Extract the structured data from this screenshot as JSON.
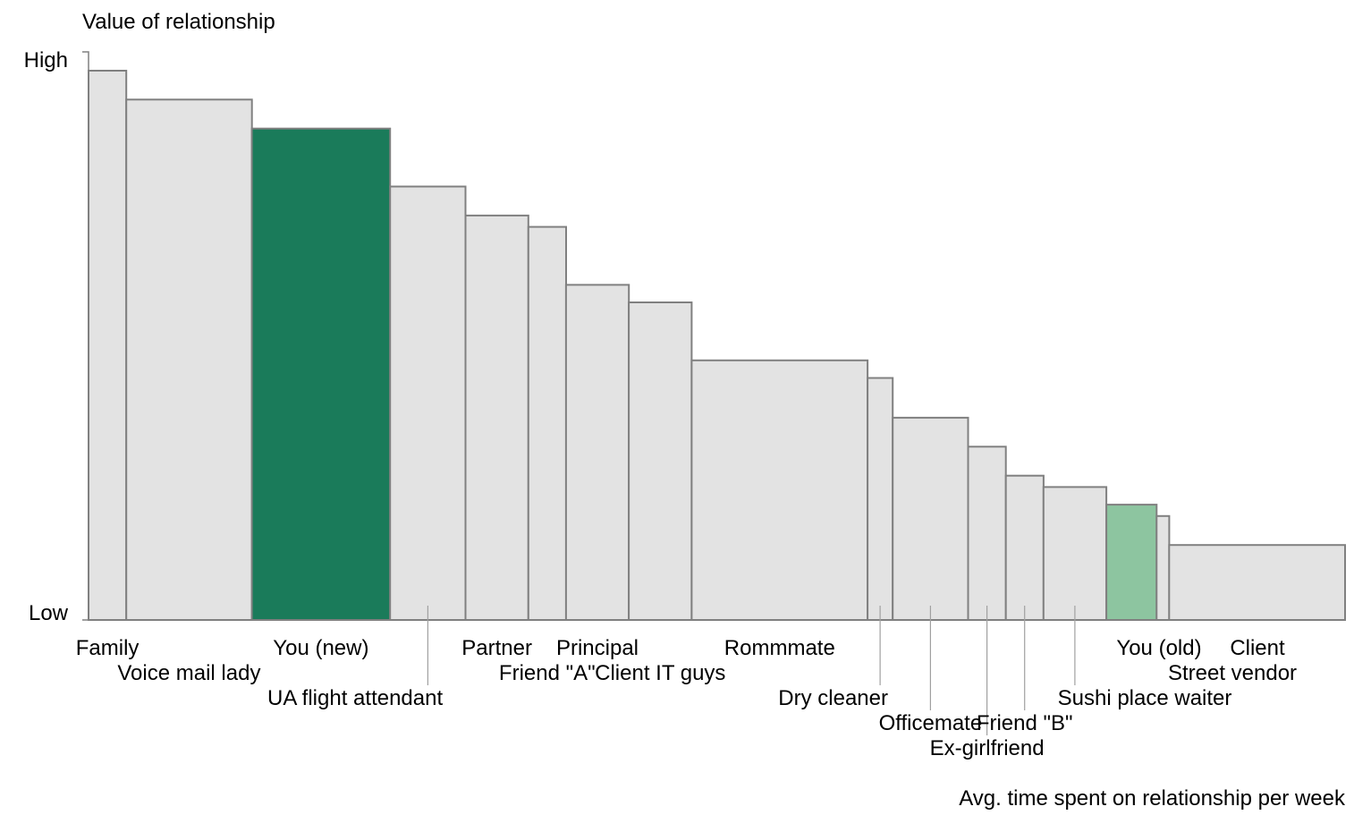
{
  "chart_data": {
    "type": "bar",
    "variant": "variable-width (marimekko-style) bars",
    "ylabel": "Value of relationship",
    "xlabel": "Avg. time spent on relationship per week",
    "y_tick_labels": {
      "high": "High",
      "low": "Low"
    },
    "ylim": [
      0,
      100
    ],
    "colors": {
      "default": "#e3e3e3",
      "highlight_dark": "#1a7b5a",
      "highlight_light": "#8dc5a0",
      "border": "#808080"
    },
    "series": [
      {
        "label": "Family",
        "width": 3,
        "value": 96.7,
        "color": "default"
      },
      {
        "label": "Voice mail lady",
        "width": 10,
        "value": 91.6,
        "color": "default"
      },
      {
        "label": "You (new)",
        "width": 11,
        "value": 86.5,
        "color": "highlight_dark"
      },
      {
        "label": "UA flight attendant",
        "width": 6,
        "value": 76.3,
        "color": "default"
      },
      {
        "label": "Partner",
        "width": 5,
        "value": 71.2,
        "color": "default"
      },
      {
        "label": "Friend \"A\"",
        "width": 3,
        "value": 69.2,
        "color": "default"
      },
      {
        "label": "Principal",
        "width": 5,
        "value": 59.0,
        "color": "default"
      },
      {
        "label": "Client IT guys",
        "width": 5,
        "value": 55.9,
        "color": "default"
      },
      {
        "label": "Rommmate",
        "width": 14,
        "value": 45.7,
        "color": "default"
      },
      {
        "label": "Dry cleaner",
        "width": 2,
        "value": 42.6,
        "color": "default"
      },
      {
        "label": "Officemate",
        "width": 6,
        "value": 35.6,
        "color": "default"
      },
      {
        "label": "Ex-girlfriend",
        "width": 3,
        "value": 30.5,
        "color": "default"
      },
      {
        "label": "Friend \"B\"",
        "width": 3,
        "value": 25.4,
        "color": "default"
      },
      {
        "label": "Sushi place waiter",
        "width": 5,
        "value": 23.4,
        "color": "default"
      },
      {
        "label": "You (old)",
        "width": 4,
        "value": 20.3,
        "color": "highlight_light"
      },
      {
        "label": "Street vendor",
        "width": 1,
        "value": 18.3,
        "color": "default"
      },
      {
        "label": "Client",
        "width": 14,
        "value": 13.2,
        "color": "default"
      }
    ]
  }
}
